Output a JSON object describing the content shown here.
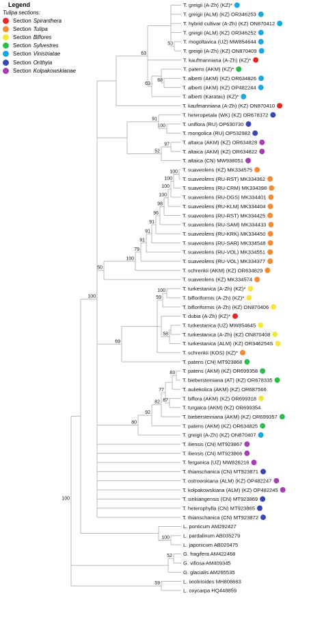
{
  "legend": {
    "title": "Legend",
    "subtitle": "Tulipa sections:",
    "section_prefix": "Section",
    "items": [
      {
        "name": "Spiranthera",
        "color": "#e32929",
        "italic": true
      },
      {
        "name": "Tulipa",
        "color": "#f28c37",
        "italic": true
      },
      {
        "name": "Biflores",
        "color": "#f5e63a",
        "italic": true
      },
      {
        "name": "Sylvestres",
        "color": "#2fbd4a",
        "italic": true
      },
      {
        "name": "Vinistriatae",
        "color": "#1aa8e2",
        "italic": true
      },
      {
        "name": "Orithyia",
        "color": "#3a45b8",
        "italic": true
      },
      {
        "name": "Kolpakowskianae",
        "color": "#a33fb0",
        "italic": true
      }
    ]
  },
  "leaves": [
    {
      "label": "T. greigii (A-Zh) (KZ)*",
      "color": "#1aa8e2"
    },
    {
      "label": "T. greigii (ALM) (KZ) OR346253",
      "color": "#1aa8e2"
    },
    {
      "label": "T. hybrid cultivar (A-Zh) (KZ) ON870412",
      "color": "#1aa8e2"
    },
    {
      "label": "T. greigii (ALM) (KZ) OR346252",
      "color": "#1aa8e2"
    },
    {
      "label": "T. mogoltavica (UZ) MW854644",
      "color": "#1aa8e2"
    },
    {
      "label": "T. greigii (A-Zh) (KZ) ON870409",
      "color": "#1aa8e2"
    },
    {
      "label": "T. kaufmanniana (A-Zh) (KZ)*",
      "color": "#e32929"
    },
    {
      "label": "T. patens (AKM) (KZ)*",
      "color": "#2fbd4a"
    },
    {
      "label": "T. alberti (AKM) (KZ) OR634826",
      "color": "#1aa8e2"
    },
    {
      "label": "T. alberti (AKM) (KZ) OP482244",
      "color": "#1aa8e2"
    },
    {
      "label": "T. alberti (Karatau) (KZ)*",
      "color": "#1aa8e2"
    },
    {
      "label": "T. kaufmanniana (A-Zh) (KZ) ON870410",
      "color": "#e32929"
    },
    {
      "label": "T. heteropetala (WK) (KZ) OR678372",
      "color": "#3a45b8"
    },
    {
      "label": "T. uniflora (RU) OP630730",
      "color": "#3a45b8"
    },
    {
      "label": "T. mongolica (RU) OP532982",
      "color": "#3a45b8"
    },
    {
      "label": "T. altaica (AKM) (KZ) OR634828",
      "color": "#a33fb0"
    },
    {
      "label": "T. altaica (AKM) (KZ) OR634822",
      "color": "#a33fb0"
    },
    {
      "label": "T. altaica (CN) MW938051",
      "color": "#a33fb0"
    },
    {
      "label": "T. suaveolens (KZ) MK334575",
      "color": "#f28c37"
    },
    {
      "label": "T. suaveolens (RU-RST) MK334362",
      "color": "#f28c37"
    },
    {
      "label": "T. suaveolens (RU-CRM) MK334398",
      "color": "#f28c37"
    },
    {
      "label": "T. suaveolens (RU-DGS) MK334401",
      "color": "#f28c37"
    },
    {
      "label": "T. suaveolens (RU-KLM) MK334404",
      "color": "#f28c37"
    },
    {
      "label": "T. suaveolens (RU-RST) MK334425",
      "color": "#f28c37"
    },
    {
      "label": "T. suaveolens (RU-SAM) MK334433",
      "color": "#f28c37"
    },
    {
      "label": "T. suaveolens (RU-KRK) MK334450",
      "color": "#f28c37"
    },
    {
      "label": "T. suaveolens (RU-SAR) MK334548",
      "color": "#f28c37"
    },
    {
      "label": "T. suaveolens (RU-VOL) MK334551",
      "color": "#f28c37"
    },
    {
      "label": "T. suaveolens (RU-VOL) MK334377",
      "color": "#f28c37"
    },
    {
      "label": "T. schrenkii (AKM) (KZ) OR634829",
      "color": "#f28c37"
    },
    {
      "label": "T. suaveolens (KZ) MK334574",
      "color": "#f28c37"
    },
    {
      "label": "T. turkestanica (A-Zh) (KZ)*",
      "color": "#f5e63a"
    },
    {
      "label": "T. bifloriformis (A-Zh) (KZ)*",
      "color": "#f5e63a"
    },
    {
      "label": "T. bifloriformis (A-Zh) (KZ) ON870406",
      "color": "#f5e63a"
    },
    {
      "label": "T. dubia (A-Zh) (KZ)*",
      "color": "#e32929"
    },
    {
      "label": "T. turkestanica (UZ) MW854645",
      "color": "#f5e63a"
    },
    {
      "label": "T. turkestanica (A-Zh) (KZ) ON870408",
      "color": "#f5e63a"
    },
    {
      "label": "T. turkestanica (ALM) (KZ) OR346254S",
      "color": "#f5e63a"
    },
    {
      "label": "T. schrenkii (KOS) (KZ)*",
      "color": "#f28c37"
    },
    {
      "label": "T. patens (CN) MT923868",
      "color": "#2fbd4a"
    },
    {
      "label": "T. patens (AKM) (KZ) OR699358",
      "color": "#2fbd4a"
    },
    {
      "label": "T. biebersteiniana (AT) (KZ) OR678335",
      "color": "#2fbd4a"
    },
    {
      "label": "T. auliekolica (AKM) (KZ) OR687566",
      "color": ""
    },
    {
      "label": "T. biflora (AKM) (KZ) OR699318",
      "color": "#f5e63a"
    },
    {
      "label": "T. turgaica (AKM) (KZ) OR699354",
      "color": ""
    },
    {
      "label": "T. biebersteiniana (AKM) (KZ) OR699357",
      "color": "#2fbd4a"
    },
    {
      "label": "T. patens (AKM) (KZ) OR634825",
      "color": "#2fbd4a"
    },
    {
      "label": "T. greigii (A-Zh) (KZ) ON870407",
      "color": "#1aa8e2"
    },
    {
      "label": "T. iliensis (CN) MT923867",
      "color": "#a33fb0"
    },
    {
      "label": "T. iliensis (CN) MT923866",
      "color": "#a33fb0"
    },
    {
      "label": "T. ferganica (UZ) MW826216",
      "color": "#a33fb0"
    },
    {
      "label": "T. thianschanica (CN) MT923871",
      "color": "#3a45b8"
    },
    {
      "label": "T. ostrowskiana (ALM) (KZ) OP482247",
      "color": "#a33fb0"
    },
    {
      "label": "T. kolpakowskiana (ALM) (KZ) OP482245",
      "color": "#a33fb0"
    },
    {
      "label": "T. sinkiangensis (CN) MT923869",
      "color": "#3a45b8"
    },
    {
      "label": "T. heterophylla (CN) MT923865",
      "color": "#3a45b8"
    },
    {
      "label": "T. thianschanica (CN) MT923872",
      "color": "#3a45b8"
    },
    {
      "label": "L. ponticum AM292427",
      "color": ""
    },
    {
      "label": "L. pardalinum AB035279",
      "color": ""
    },
    {
      "label": "L. japonicum AB020475",
      "color": ""
    },
    {
      "label": "G. fragifera AM422468",
      "color": ""
    },
    {
      "label": "G. villosa AM409345",
      "color": ""
    },
    {
      "label": "G. glacialis AM265535",
      "color": ""
    },
    {
      "label": "L. ixiolirioides MH808663",
      "color": ""
    },
    {
      "label": "L. oxycarpa HQ448859",
      "color": ""
    }
  ],
  "bootstrap": [
    "50",
    "68",
    "63",
    "63",
    "91",
    "100",
    "97",
    "52",
    "100",
    "100",
    "100",
    "100",
    "98",
    "96",
    "91",
    "91",
    "91",
    "79",
    "100",
    "50",
    "100",
    "59",
    "58",
    "69",
    "83",
    "87",
    "77",
    "82",
    "92",
    "80",
    "100",
    "100",
    "52",
    "59",
    "100"
  ]
}
